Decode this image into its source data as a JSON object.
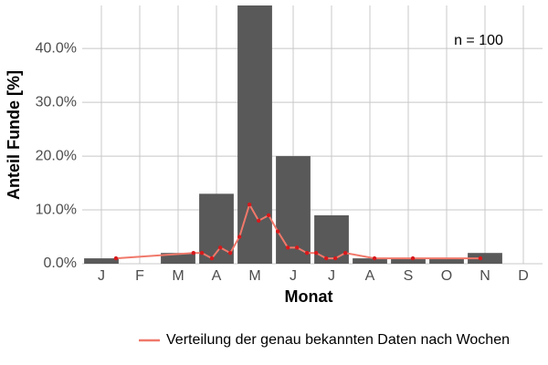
{
  "chart_data": {
    "type": "bar",
    "x_label": "Monat",
    "y_label": "Anteil Funde [%]",
    "annotation": "n = 100",
    "categories": [
      "J",
      "F",
      "M",
      "A",
      "M",
      "J",
      "J",
      "A",
      "S",
      "O",
      "N",
      "D"
    ],
    "values": [
      1,
      0,
      2,
      13,
      48,
      20,
      9,
      1,
      1,
      1,
      2,
      0
    ],
    "color": "#595959",
    "xlim": [
      0.5,
      12.5
    ],
    "ylim": [
      0,
      48
    ],
    "yticks": [
      {
        "value": 0,
        "label": "0.0%"
      },
      {
        "value": 10,
        "label": "10.0%"
      },
      {
        "value": 20,
        "label": "20.0%"
      },
      {
        "value": 30,
        "label": "30.0%"
      },
      {
        "value": 40,
        "label": "40.0%"
      }
    ],
    "grid": true,
    "legend": "bottom",
    "line": {
      "name": "Verteilung der genau bekannten Daten nach Wochen",
      "color": "#f0786a",
      "point_color": "#d7191c",
      "x": [
        1.38,
        3.4,
        3.62,
        3.88,
        4.1,
        4.36,
        4.6,
        4.86,
        5.1,
        5.36,
        5.6,
        5.86,
        6.1,
        6.36,
        6.6,
        6.86,
        7.1,
        7.36,
        8.12,
        9.12,
        10.88
      ],
      "values": [
        1,
        2,
        2,
        1,
        3,
        2,
        5,
        11,
        8,
        9,
        6,
        3,
        3,
        2,
        2,
        1,
        1,
        2,
        1,
        1,
        1
      ]
    }
  }
}
